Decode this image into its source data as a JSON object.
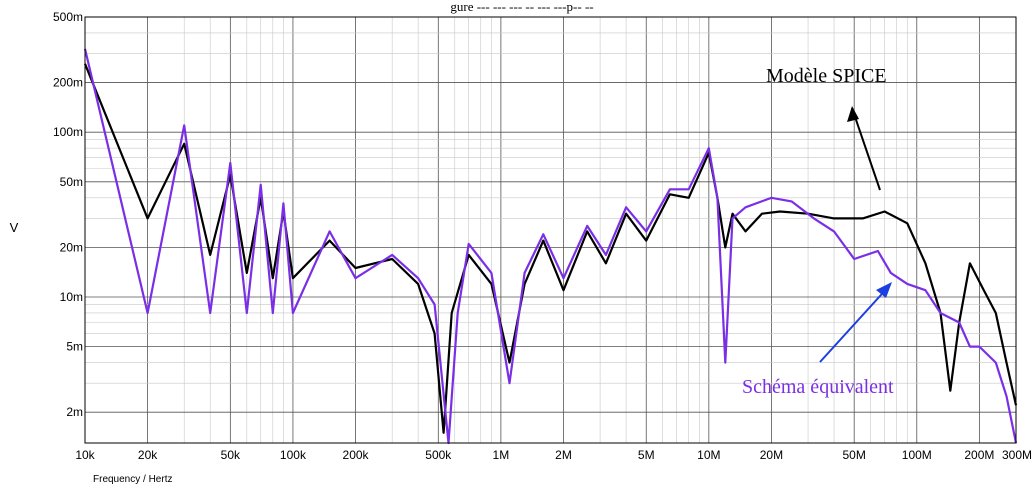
{
  "chart_data": {
    "type": "line",
    "title": "gure  ---  --- ---  -- --- ---p-- --",
    "xlabel": "Frequency / Hertz",
    "ylabel": "V",
    "xscale": "log",
    "yscale": "log",
    "xlim": [
      10000,
      300000000
    ],
    "ylim": [
      0.0013,
      0.5
    ],
    "x_tick_labels": [
      {
        "v": 10000,
        "t": "10k"
      },
      {
        "v": 20000,
        "t": "20k"
      },
      {
        "v": 50000,
        "t": "50k"
      },
      {
        "v": 100000,
        "t": "100k"
      },
      {
        "v": 200000,
        "t": "200k"
      },
      {
        "v": 500000,
        "t": "500k"
      },
      {
        "v": 1000000,
        "t": "1M"
      },
      {
        "v": 2000000,
        "t": "2M"
      },
      {
        "v": 5000000,
        "t": "5M"
      },
      {
        "v": 10000000,
        "t": "10M"
      },
      {
        "v": 20000000,
        "t": "20M"
      },
      {
        "v": 50000000,
        "t": "50M"
      },
      {
        "v": 100000000,
        "t": "100M"
      },
      {
        "v": 200000000,
        "t": "200M"
      },
      {
        "v": 300000000,
        "t": "300M"
      }
    ],
    "y_tick_labels": [
      {
        "v": 0.5,
        "t": "500m"
      },
      {
        "v": 0.2,
        "t": "200m"
      },
      {
        "v": 0.1,
        "t": "100m"
      },
      {
        "v": 0.05,
        "t": "50m"
      },
      {
        "v": 0.02,
        "t": "20m"
      },
      {
        "v": 0.01,
        "t": "10m"
      },
      {
        "v": 0.005,
        "t": "5m"
      },
      {
        "v": 0.002,
        "t": "2m"
      }
    ],
    "grid": true,
    "series": [
      {
        "name": "Modèle SPICE",
        "color": "#000000",
        "points": [
          [
            10000,
            0.26
          ],
          [
            20000,
            0.03
          ],
          [
            30000,
            0.085
          ],
          [
            40000,
            0.018
          ],
          [
            50000,
            0.055
          ],
          [
            60000,
            0.014
          ],
          [
            70000,
            0.04
          ],
          [
            80000,
            0.013
          ],
          [
            90000,
            0.033
          ],
          [
            100000,
            0.013
          ],
          [
            150000,
            0.022
          ],
          [
            200000,
            0.015
          ],
          [
            300000,
            0.017
          ],
          [
            400000,
            0.012
          ],
          [
            480000,
            0.006
          ],
          [
            530000,
            0.0015
          ],
          [
            580000,
            0.008
          ],
          [
            700000,
            0.018
          ],
          [
            900000,
            0.012
          ],
          [
            1100000,
            0.004
          ],
          [
            1300000,
            0.012
          ],
          [
            1600000,
            0.022
          ],
          [
            2000000,
            0.011
          ],
          [
            2600000,
            0.025
          ],
          [
            3200000,
            0.016
          ],
          [
            4000000,
            0.032
          ],
          [
            5000000,
            0.022
          ],
          [
            6500000,
            0.042
          ],
          [
            8000000,
            0.04
          ],
          [
            10000000,
            0.075
          ],
          [
            11000000,
            0.04
          ],
          [
            12000000,
            0.02
          ],
          [
            13000000,
            0.032
          ],
          [
            15000000,
            0.025
          ],
          [
            18000000,
            0.032
          ],
          [
            22000000,
            0.033
          ],
          [
            30000000,
            0.032
          ],
          [
            40000000,
            0.03
          ],
          [
            55000000,
            0.03
          ],
          [
            70000000,
            0.033
          ],
          [
            90000000,
            0.028
          ],
          [
            110000000,
            0.016
          ],
          [
            130000000,
            0.008
          ],
          [
            145000000,
            0.0027
          ],
          [
            160000000,
            0.007
          ],
          [
            180000000,
            0.016
          ],
          [
            210000000,
            0.011
          ],
          [
            240000000,
            0.008
          ],
          [
            270000000,
            0.004
          ],
          [
            300000000,
            0.0022
          ]
        ]
      },
      {
        "name": "Schéma équivalent",
        "color": "#7a2fe6",
        "points": [
          [
            10000,
            0.32
          ],
          [
            20000,
            0.008
          ],
          [
            30000,
            0.11
          ],
          [
            40000,
            0.008
          ],
          [
            50000,
            0.065
          ],
          [
            60000,
            0.008
          ],
          [
            70000,
            0.048
          ],
          [
            80000,
            0.008
          ],
          [
            90000,
            0.037
          ],
          [
            100000,
            0.008
          ],
          [
            150000,
            0.025
          ],
          [
            200000,
            0.013
          ],
          [
            300000,
            0.018
          ],
          [
            400000,
            0.013
          ],
          [
            480000,
            0.009
          ],
          [
            560000,
            0.0013
          ],
          [
            620000,
            0.008
          ],
          [
            700000,
            0.021
          ],
          [
            900000,
            0.014
          ],
          [
            1100000,
            0.003
          ],
          [
            1300000,
            0.014
          ],
          [
            1600000,
            0.024
          ],
          [
            2000000,
            0.013
          ],
          [
            2600000,
            0.027
          ],
          [
            3200000,
            0.018
          ],
          [
            4000000,
            0.035
          ],
          [
            5000000,
            0.025
          ],
          [
            6500000,
            0.045
          ],
          [
            8000000,
            0.045
          ],
          [
            10000000,
            0.08
          ],
          [
            11000000,
            0.04
          ],
          [
            12000000,
            0.004
          ],
          [
            13000000,
            0.03
          ],
          [
            15000000,
            0.035
          ],
          [
            20000000,
            0.04
          ],
          [
            25000000,
            0.038
          ],
          [
            32000000,
            0.03
          ],
          [
            40000000,
            0.025
          ],
          [
            50000000,
            0.017
          ],
          [
            65000000,
            0.019
          ],
          [
            75000000,
            0.014
          ],
          [
            90000000,
            0.012
          ],
          [
            110000000,
            0.011
          ],
          [
            130000000,
            0.008
          ],
          [
            160000000,
            0.007
          ],
          [
            180000000,
            0.005
          ],
          [
            200000000,
            0.005
          ],
          [
            240000000,
            0.004
          ],
          [
            270000000,
            0.0025
          ],
          [
            300000000,
            0.0013
          ]
        ]
      }
    ],
    "annotations": {
      "spice": "Modèle SPICE",
      "equiv": "Schéma équivalent"
    }
  }
}
